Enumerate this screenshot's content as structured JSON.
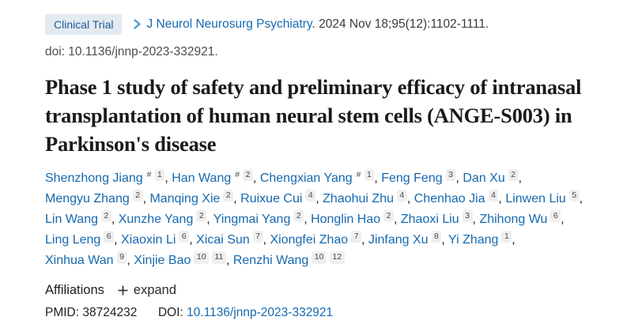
{
  "header": {
    "publication_type": "Clinical Trial",
    "journal_name": "J Neurol Neurosurg Psychiatry",
    "citation_rest": ". 2024 Nov 18;95(12):1102-1111.",
    "doi_line": "doi: 10.1136/jnnp-2023-332921."
  },
  "title": "Phase 1 study of safety and preliminary efficacy of intranasal transplantation of human neural stem cells (ANGE-S003) in Parkinson's disease",
  "authors": [
    {
      "name": "Shenzhong Jiang",
      "tags": [
        "#",
        "1"
      ]
    },
    {
      "name": "Han Wang",
      "tags": [
        "#",
        "2"
      ]
    },
    {
      "name": "Chengxian Yang",
      "tags": [
        "#",
        "1"
      ]
    },
    {
      "name": "Feng Feng",
      "tags": [
        "3"
      ]
    },
    {
      "name": "Dan Xu",
      "tags": [
        "2"
      ]
    },
    {
      "name": "Mengyu Zhang",
      "tags": [
        "2"
      ]
    },
    {
      "name": "Manqing Xie",
      "tags": [
        "2"
      ]
    },
    {
      "name": "Ruixue Cui",
      "tags": [
        "4"
      ]
    },
    {
      "name": "Zhaohui Zhu",
      "tags": [
        "4"
      ]
    },
    {
      "name": "Chenhao Jia",
      "tags": [
        "4"
      ]
    },
    {
      "name": "Linwen Liu",
      "tags": [
        "5"
      ]
    },
    {
      "name": "Lin Wang",
      "tags": [
        "2"
      ]
    },
    {
      "name": "Xunzhe Yang",
      "tags": [
        "2"
      ]
    },
    {
      "name": "Yingmai Yang",
      "tags": [
        "2"
      ]
    },
    {
      "name": "Honglin Hao",
      "tags": [
        "2"
      ]
    },
    {
      "name": "Zhaoxi Liu",
      "tags": [
        "3"
      ]
    },
    {
      "name": "Zhihong Wu",
      "tags": [
        "6"
      ]
    },
    {
      "name": "Ling Leng",
      "tags": [
        "6"
      ]
    },
    {
      "name": "Xiaoxin Li",
      "tags": [
        "6"
      ]
    },
    {
      "name": "Xicai Sun",
      "tags": [
        "7"
      ]
    },
    {
      "name": "Xiongfei Zhao",
      "tags": [
        "7"
      ]
    },
    {
      "name": "Jinfang Xu",
      "tags": [
        "8"
      ]
    },
    {
      "name": "Yi Zhang",
      "tags": [
        "1"
      ]
    },
    {
      "name": "Xinhua Wan",
      "tags": [
        "9"
      ]
    },
    {
      "name": "Xinjie Bao",
      "tags": [
        "10",
        "11"
      ]
    },
    {
      "name": "Renzhi Wang",
      "tags": [
        "10",
        "12"
      ]
    }
  ],
  "affiliations": {
    "label": "Affiliations",
    "expand_label": "expand"
  },
  "identifiers": {
    "pmid_label": "PMID:",
    "pmid_value": "38724232",
    "doi_label": "DOI:",
    "doi_value": "10.1136/jnnp-2023-332921"
  },
  "icons": {
    "breadcrumb_chevron": "chevron-right-icon",
    "expand_plus": "plus-icon"
  },
  "colors": {
    "link_blue": "#1669b0",
    "badge_bg": "#e4eaf2",
    "badge_text": "#1e5b97",
    "chevron_blue": "#3e9ad6",
    "sup_box_bg": "#efefef"
  }
}
